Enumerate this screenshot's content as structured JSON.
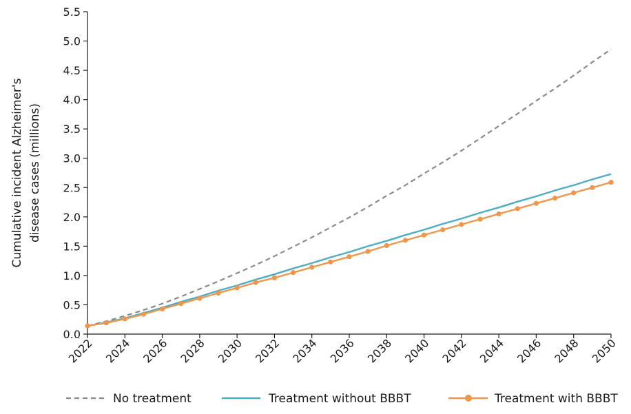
{
  "chart_data": {
    "type": "line",
    "title": "",
    "xlabel": "",
    "ylabel_lines": [
      "Cumulative incident Alzheimer's",
      "disease cases (millions)"
    ],
    "xlim": [
      2022,
      2050
    ],
    "ylim": [
      0,
      5.5
    ],
    "x_ticks": [
      "2022",
      "2024",
      "2026",
      "2028",
      "2030",
      "2032",
      "2034",
      "2036",
      "2038",
      "2040",
      "2042",
      "2044",
      "2046",
      "2048",
      "2050"
    ],
    "y_ticks": [
      "0.0",
      "0.5",
      "1.0",
      "1.5",
      "2.0",
      "2.5",
      "3.0",
      "3.5",
      "4.0",
      "4.5",
      "5.0",
      "5.5"
    ],
    "grid": false,
    "legend_position": "bottom",
    "x": [
      2022,
      2023,
      2024,
      2025,
      2026,
      2027,
      2028,
      2029,
      2030,
      2031,
      2032,
      2033,
      2034,
      2035,
      2036,
      2037,
      2038,
      2039,
      2040,
      2041,
      2042,
      2043,
      2044,
      2045,
      2046,
      2047,
      2048,
      2049,
      2050
    ],
    "series": [
      {
        "name": "No treatment",
        "style": "dashed",
        "color": "#8a8a8a",
        "values": [
          0.14,
          0.22,
          0.31,
          0.41,
          0.52,
          0.64,
          0.77,
          0.9,
          1.04,
          1.18,
          1.33,
          1.49,
          1.65,
          1.82,
          1.99,
          2.17,
          2.36,
          2.54,
          2.74,
          2.93,
          3.13,
          3.34,
          3.55,
          3.76,
          3.98,
          4.19,
          4.41,
          4.64,
          4.86
        ]
      },
      {
        "name": "Treatment without BBBT",
        "style": "solid",
        "color": "#4bacc6",
        "values": [
          0.14,
          0.2,
          0.27,
          0.36,
          0.45,
          0.55,
          0.64,
          0.74,
          0.83,
          0.93,
          1.02,
          1.12,
          1.21,
          1.31,
          1.4,
          1.5,
          1.59,
          1.69,
          1.78,
          1.88,
          1.97,
          2.07,
          2.16,
          2.26,
          2.35,
          2.45,
          2.54,
          2.64,
          2.73
        ]
      },
      {
        "name": "Treatment with BBBT",
        "style": "solid-markers",
        "color": "#f0954a",
        "values": [
          0.14,
          0.19,
          0.26,
          0.34,
          0.43,
          0.52,
          0.61,
          0.7,
          0.79,
          0.88,
          0.96,
          1.05,
          1.14,
          1.23,
          1.32,
          1.41,
          1.51,
          1.6,
          1.69,
          1.78,
          1.87,
          1.96,
          2.05,
          2.14,
          2.23,
          2.32,
          2.41,
          2.5,
          2.59
        ]
      }
    ]
  }
}
